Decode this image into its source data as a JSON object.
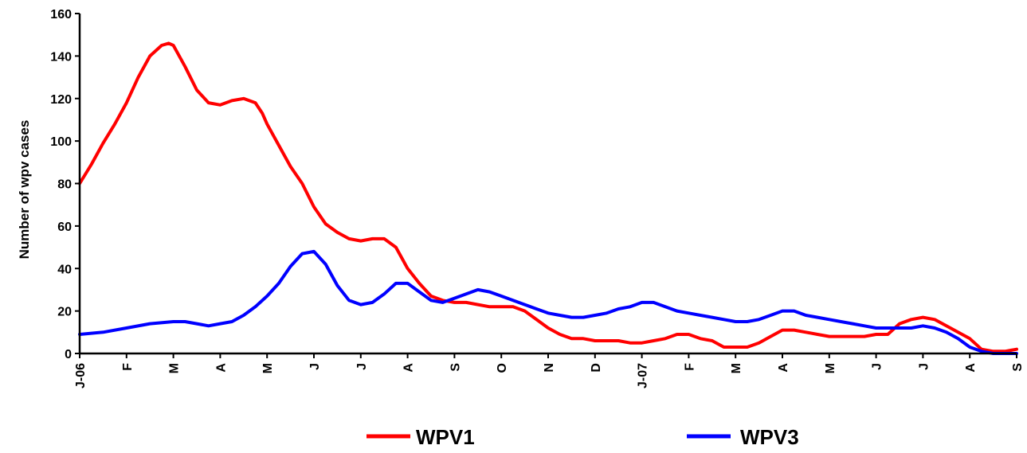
{
  "chart_data": {
    "type": "line",
    "ylabel": "Number of wpv cases",
    "xlabel": "",
    "ylim": [
      0,
      160
    ],
    "yticks": [
      0,
      20,
      40,
      60,
      80,
      100,
      120,
      140,
      160
    ],
    "x_range": [
      0,
      20
    ],
    "x_tick_labels": [
      "J-06",
      "F",
      "M",
      "A",
      "M",
      "J",
      "J",
      "A",
      "S",
      "O",
      "N",
      "D",
      "J-07",
      "F",
      "M",
      "A",
      "M",
      "J",
      "J",
      "A",
      "S"
    ],
    "grid": false,
    "legend_position": "bottom",
    "series": [
      {
        "name": "WPV1",
        "color": "#ff0000",
        "x": [
          0,
          0.25,
          0.5,
          0.75,
          1.0,
          1.25,
          1.5,
          1.75,
          1.9,
          2.0,
          2.1,
          2.25,
          2.5,
          2.75,
          3.0,
          3.25,
          3.5,
          3.75,
          3.9,
          4.0,
          4.25,
          4.5,
          4.75,
          5.0,
          5.25,
          5.5,
          5.75,
          6.0,
          6.25,
          6.5,
          6.75,
          7.0,
          7.25,
          7.5,
          7.75,
          8.0,
          8.25,
          8.5,
          8.75,
          9.0,
          9.25,
          9.5,
          9.75,
          10.0,
          10.25,
          10.5,
          10.75,
          11.0,
          11.25,
          11.5,
          11.75,
          12.0,
          12.25,
          12.5,
          12.75,
          13.0,
          13.25,
          13.5,
          13.75,
          14.0,
          14.25,
          14.5,
          14.75,
          15.0,
          15.25,
          15.5,
          15.75,
          16.0,
          16.25,
          16.5,
          16.75,
          17.0,
          17.25,
          17.5,
          17.75,
          18.0,
          18.25,
          18.5,
          18.75,
          19.0,
          19.25,
          19.5,
          19.75,
          20.0
        ],
        "y": [
          80,
          89,
          99,
          108,
          118,
          130,
          140,
          145,
          146,
          145,
          141,
          135,
          124,
          118,
          117,
          119,
          120,
          118,
          113,
          108,
          98,
          88,
          80,
          69,
          61,
          57,
          54,
          53,
          54,
          54,
          50,
          40,
          33,
          27,
          25,
          24,
          24,
          23,
          22,
          22,
          22,
          20,
          16,
          12,
          9,
          7,
          7,
          6,
          6,
          6,
          5,
          5,
          6,
          7,
          9,
          9,
          7,
          6,
          3,
          3,
          3,
          5,
          8,
          11,
          11,
          10,
          9,
          8,
          8,
          8,
          8,
          9,
          9,
          14,
          16,
          17,
          16,
          13,
          10,
          7,
          2,
          1,
          1,
          2
        ]
      },
      {
        "name": "WPV3",
        "color": "#0000ff",
        "x": [
          0,
          0.5,
          1.0,
          1.5,
          2.0,
          2.25,
          2.5,
          2.75,
          3.0,
          3.25,
          3.5,
          3.75,
          4.0,
          4.25,
          4.5,
          4.75,
          5.0,
          5.25,
          5.5,
          5.75,
          6.0,
          6.25,
          6.5,
          6.75,
          7.0,
          7.25,
          7.5,
          7.75,
          8.0,
          8.25,
          8.5,
          8.75,
          9.0,
          9.25,
          9.5,
          9.75,
          10.0,
          10.25,
          10.5,
          10.75,
          11.0,
          11.25,
          11.5,
          11.75,
          12.0,
          12.25,
          12.5,
          12.75,
          13.0,
          13.25,
          13.5,
          13.75,
          14.0,
          14.25,
          14.5,
          14.75,
          15.0,
          15.25,
          15.5,
          15.75,
          16.0,
          16.25,
          16.5,
          16.75,
          17.0,
          17.25,
          17.5,
          17.75,
          18.0,
          18.25,
          18.5,
          18.75,
          19.0,
          19.25,
          19.5,
          19.75,
          20.0
        ],
        "y": [
          9,
          10,
          12,
          14,
          15,
          15,
          14,
          13,
          14,
          15,
          18,
          22,
          27,
          33,
          41,
          47,
          48,
          42,
          32,
          25,
          23,
          24,
          28,
          33,
          33,
          29,
          25,
          24,
          26,
          28,
          30,
          29,
          27,
          25,
          23,
          21,
          19,
          18,
          17,
          17,
          18,
          19,
          21,
          22,
          24,
          24,
          22,
          20,
          19,
          18,
          17,
          16,
          15,
          15,
          16,
          18,
          20,
          20,
          18,
          17,
          16,
          15,
          14,
          13,
          12,
          12,
          12,
          12,
          13,
          12,
          10,
          7,
          3,
          1,
          0,
          0,
          0
        ]
      }
    ]
  }
}
